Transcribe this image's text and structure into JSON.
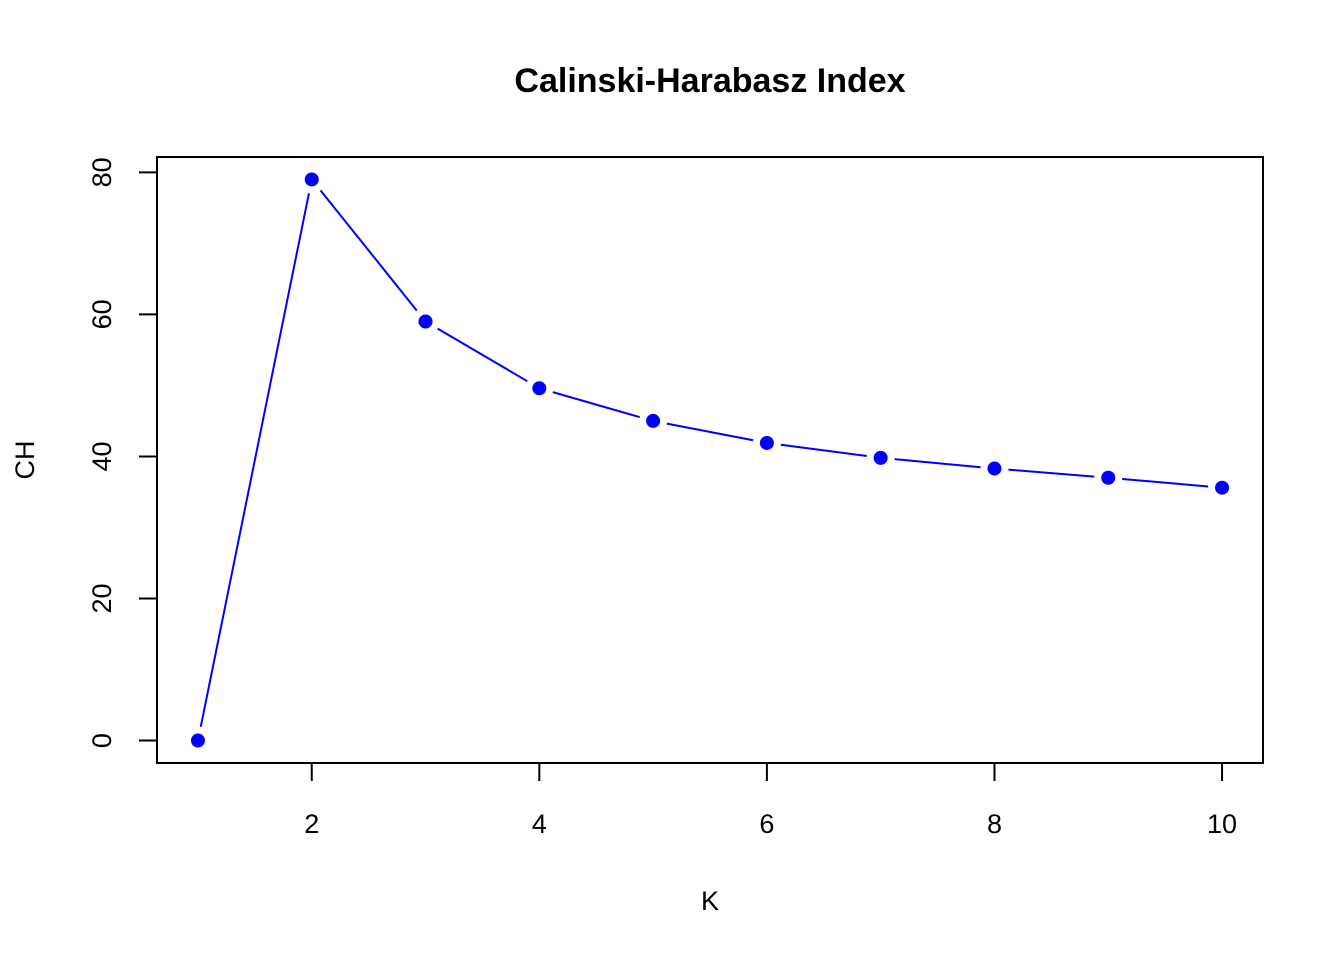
{
  "chart_data": {
    "type": "line",
    "title": "Calinski-Harabasz Index",
    "xlabel": "K",
    "ylabel": "CH",
    "xlim": [
      0.64,
      10.36
    ],
    "ylim": [
      -3.16,
      82.16
    ],
    "xticks": [
      2,
      4,
      6,
      8,
      10
    ],
    "yticks": [
      0,
      20,
      40,
      60,
      80
    ],
    "grid": false,
    "legend": "none",
    "series": [
      {
        "x": [
          1,
          2,
          3,
          4,
          5,
          6,
          7,
          8,
          9,
          10
        ],
        "values": [
          0,
          79.0,
          59.0,
          49.6,
          45.0,
          41.9,
          39.8,
          38.3,
          37.0,
          35.6
        ],
        "color": "#0000ff",
        "line_style": "overplotted (points with line gaps)",
        "marker": "filled-circle"
      }
    ]
  }
}
